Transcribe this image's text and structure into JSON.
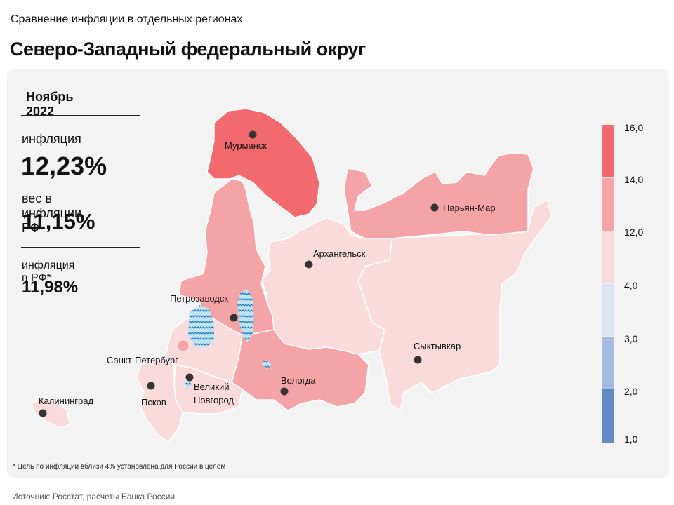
{
  "header": {
    "subtitle": "Сравнение инфляции в отдельных регионах",
    "title": "Северо-Западный федеральный округ"
  },
  "stats": {
    "period": "Ноябрь 2022",
    "inflation_label": "инфляция",
    "inflation_value": "12,23%",
    "weight_label": "вес в инфляции РФ",
    "weight_value": "11,15%",
    "rf_inflation_label": "инфляция в РФ*",
    "rf_inflation_value": "11,98%"
  },
  "cities": [
    {
      "name": "Мурманск"
    },
    {
      "name": "Нарьян-Мар"
    },
    {
      "name": "Архангельск"
    },
    {
      "name": "Петрозаводск"
    },
    {
      "name": "Санкт-Петербург"
    },
    {
      "name": "Сыктывкар"
    },
    {
      "name": "Вологда"
    },
    {
      "name": "Великий"
    },
    {
      "name": "Новгород"
    },
    {
      "name": "Псков"
    },
    {
      "name": "Калининград"
    }
  ],
  "legend": {
    "ticks": [
      "16,0",
      "14,0",
      "12,0",
      "4,0",
      "3,0",
      "2,0",
      "1,0"
    ],
    "colors": {
      "14_16": "#f26a6e",
      "12_14": "#f4a3a6",
      "4_12": "#f9dbdc",
      "3_4": "#dbe4f4",
      "2_3": "#a3bde0",
      "1_2": "#6189c6"
    }
  },
  "footnote": "* Цель по инфляции вблизи 4% установлена для России в целом",
  "source": "Источник: Росстат, расчеты Банка России"
}
